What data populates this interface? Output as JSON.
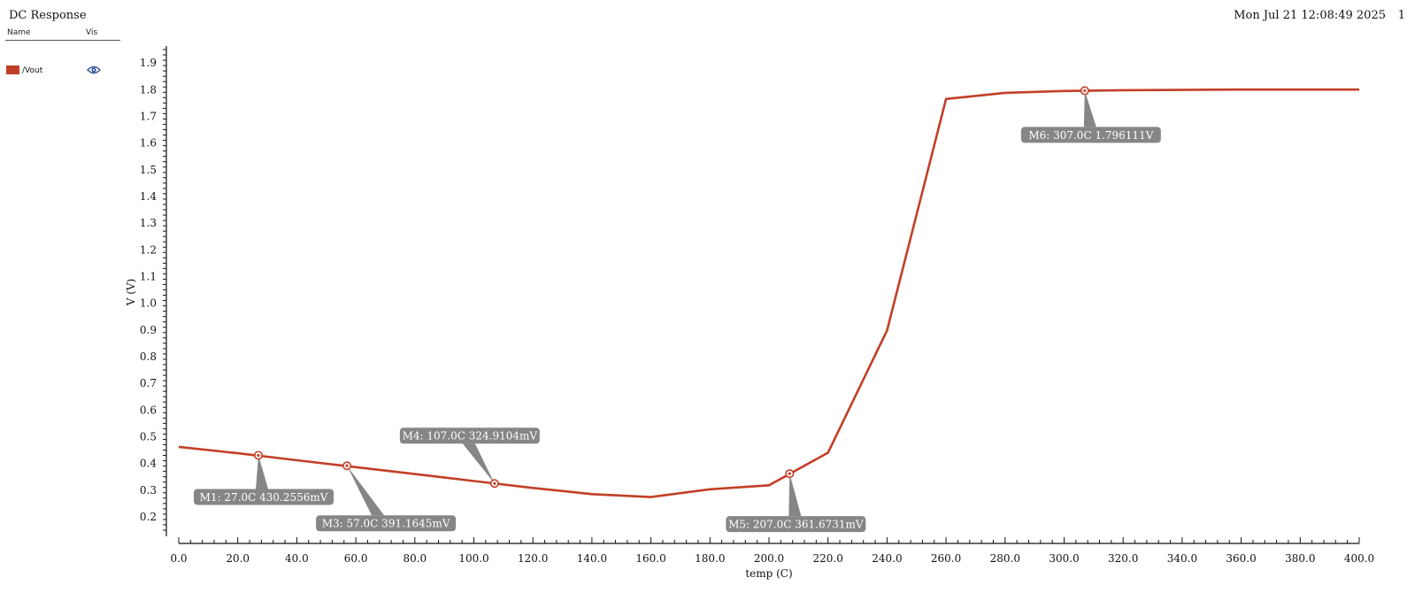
{
  "window": {
    "title": "DC Response",
    "timestamp": "Mon Jul 21 12:08:49 2025",
    "page_number": "1"
  },
  "legend": {
    "header_name": "Name",
    "header_vis": "Vis",
    "items": [
      {
        "label": "/Vout",
        "color": "#c23f26",
        "icon": "eye-icon"
      }
    ]
  },
  "chart_data": {
    "type": "line",
    "xlabel": "temp (C)",
    "ylabel": "V (V)",
    "xlim": [
      0,
      400
    ],
    "ylim": [
      0.15,
      1.95
    ],
    "x_ticks": [
      0,
      20,
      40,
      60,
      80,
      100,
      120,
      140,
      160,
      180,
      200,
      220,
      240,
      260,
      280,
      300,
      320,
      340,
      360,
      380,
      400
    ],
    "x_tick_labels": [
      "0.0",
      "20.0",
      "40.0",
      "60.0",
      "80.0",
      "100.0",
      "120.0",
      "140.0",
      "160.0",
      "180.0",
      "200.0",
      "220.0",
      "240.0",
      "260.0",
      "280.0",
      "300.0",
      "320.0",
      "340.0",
      "360.0",
      "380.0",
      "400.0"
    ],
    "y_ticks": [
      0.2,
      0.3,
      0.4,
      0.5,
      0.6,
      0.7,
      0.8,
      0.9,
      1.0,
      1.1,
      1.2,
      1.3,
      1.4,
      1.5,
      1.6,
      1.7,
      1.8,
      1.9
    ],
    "y_tick_labels": [
      "0.2",
      "0.3",
      "0.4",
      "0.5",
      "0.6",
      "0.7",
      "0.8",
      "0.9",
      "1.0",
      "1.1",
      "1.2",
      "1.3",
      "1.4",
      "1.5",
      "1.6",
      "1.7",
      "1.8",
      "1.9"
    ],
    "grid": false,
    "legend_position": "top-left",
    "series": [
      {
        "name": "/Vout",
        "color": "#c23f26",
        "x": [
          0,
          20,
          40,
          60,
          80,
          100,
          120,
          140,
          160,
          180,
          200,
          220,
          240,
          260,
          280,
          300,
          320,
          340,
          360,
          380,
          400
        ],
        "y": [
          0.462,
          0.438,
          0.412,
          0.386,
          0.36,
          0.334,
          0.308,
          0.285,
          0.274,
          0.303,
          0.318,
          0.44,
          0.898,
          1.765,
          1.788,
          1.795,
          1.798,
          1.799,
          1.8,
          1.8,
          1.8
        ]
      }
    ],
    "markers": [
      {
        "name": "M1",
        "label": "M1: 27.0C 430.2556mV",
        "x": 27.0,
        "y": 0.4302556,
        "placement": "below-left"
      },
      {
        "name": "M3",
        "label": "M3: 57.0C 391.1645mV",
        "x": 57.0,
        "y": 0.3911645,
        "placement": "below-right"
      },
      {
        "name": "M4",
        "label": "M4: 107.0C 324.9104mV",
        "x": 107.0,
        "y": 0.3249104,
        "placement": "above-left"
      },
      {
        "name": "M5",
        "label": "M5: 207.0C 361.6731mV",
        "x": 207.0,
        "y": 0.3616731,
        "placement": "below"
      },
      {
        "name": "M6",
        "label": "M6: 307.0C 1.796111V",
        "x": 307.0,
        "y": 1.796111,
        "placement": "below"
      }
    ],
    "marker_color": "#868686"
  }
}
